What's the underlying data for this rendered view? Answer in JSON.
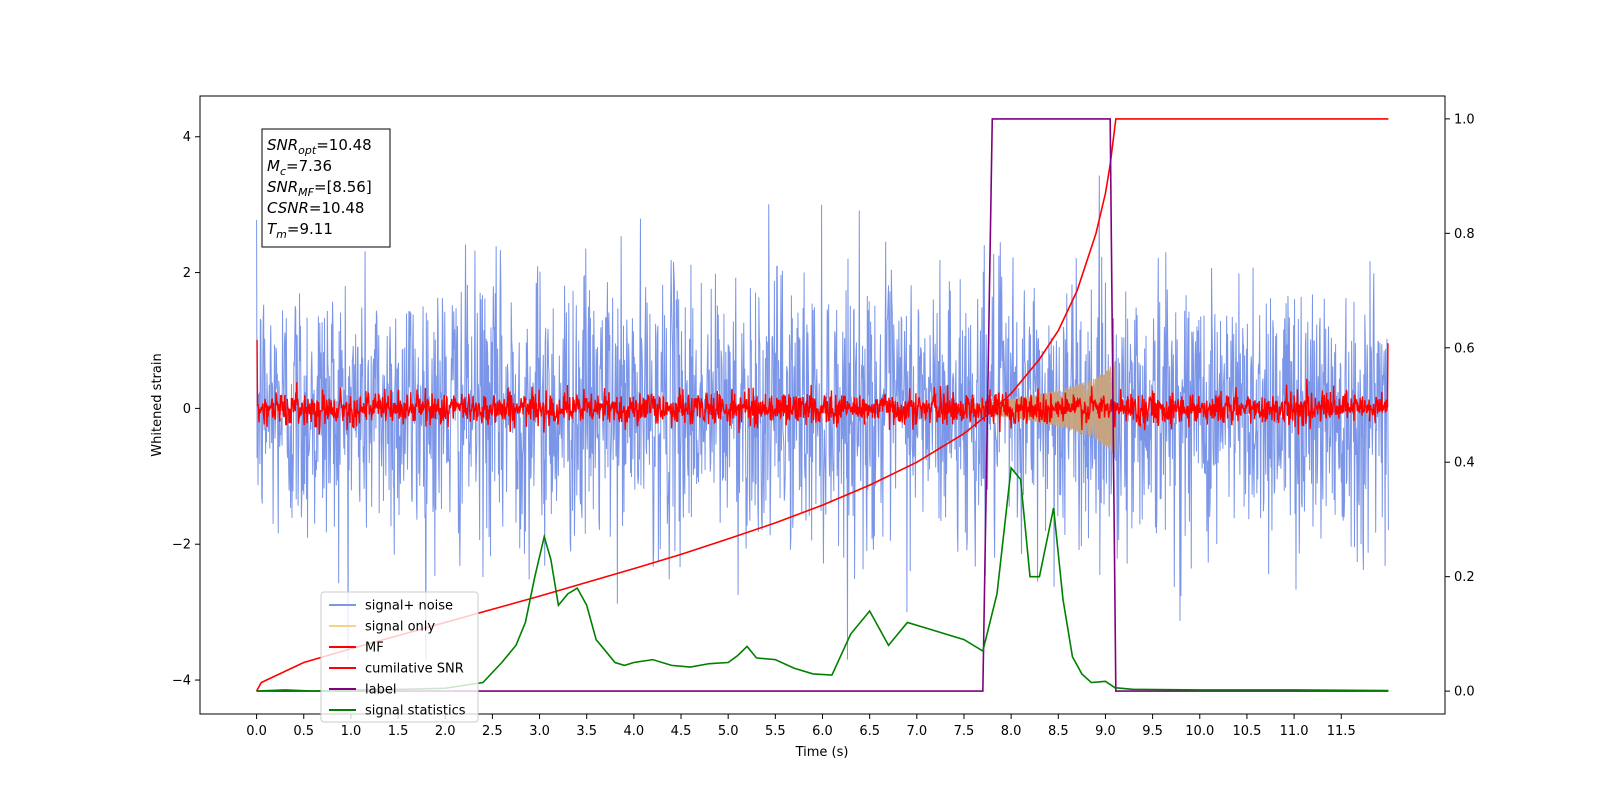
{
  "chart_data": {
    "type": "line",
    "title": "",
    "xlabel": "Time (s)",
    "ylabel": "Whitened strain",
    "xlim": [
      -0.6,
      12.6
    ],
    "ylim": [
      -4.5,
      4.6
    ],
    "y2lim": [
      -0.04,
      1.04
    ],
    "x_ticks": [
      0.0,
      0.5,
      1.0,
      1.5,
      2.0,
      2.5,
      3.0,
      3.5,
      4.0,
      4.5,
      5.0,
      5.5,
      6.0,
      6.5,
      7.0,
      7.5,
      8.0,
      8.5,
      9.0,
      9.5,
      10.0,
      10.5,
      11.0,
      11.5
    ],
    "x_tick_labels": [
      "0.0",
      "0.5",
      "1.0",
      "1.5",
      "2.0",
      "2.5",
      "3.0",
      "3.5",
      "4.0",
      "4.5",
      "5.0",
      "5.5",
      "6.0",
      "6.5",
      "7.0",
      "7.5",
      "8.0",
      "8.5",
      "9.0",
      "9.5",
      "10.0",
      "10.5",
      "11.0",
      "11.5"
    ],
    "y_ticks": [
      4,
      2,
      0,
      -2,
      -4
    ],
    "y_tick_labels": [
      "4",
      "2",
      "0",
      "−2",
      "−4"
    ],
    "y2_ticks": [
      1.0,
      0.8,
      0.6,
      0.4,
      0.2,
      0.0
    ],
    "y2_tick_labels": [
      "1.0",
      "0.8",
      "0.6",
      "0.4",
      "0.2",
      "0.0"
    ],
    "grid": false,
    "legend_position": "lower-left",
    "legend": [
      {
        "label": "signal+ noise",
        "color": "#7b96e8"
      },
      {
        "label": "signal only",
        "color": "#f9d088"
      },
      {
        "label": "MF",
        "color": "#ff0000"
      },
      {
        "label": "cumilative SNR",
        "color": "#ff0000"
      },
      {
        "label": "label",
        "color": "#800080"
      },
      {
        "label": "signal statistics",
        "color": "#008000"
      }
    ],
    "info_box": [
      {
        "sym": "SNR",
        "sub": "opt",
        "val": "=10.48"
      },
      {
        "sym": "M",
        "sub": "c",
        "val": "=7.36"
      },
      {
        "sym": "SNR",
        "sub": "MF",
        "val": "=[8.56]"
      },
      {
        "sym": "CSNR",
        "sub": "",
        "val": "=10.48"
      },
      {
        "sym": "T",
        "sub": "m",
        "val": "=9.11"
      }
    ],
    "series": [
      {
        "name": "signal+ noise",
        "axis": "left",
        "color": "#7b96e8",
        "style": "noise",
        "x_range": [
          0.0,
          12.0
        ],
        "amplitude_sd": 1.0,
        "peak_range": [
          -3.7,
          4.2
        ]
      },
      {
        "name": "signal only",
        "axis": "left",
        "color": "#c8a27c",
        "style": "chirp",
        "x_range": [
          7.4,
          9.11
        ],
        "envelope": [
          [
            7.4,
            0.02
          ],
          [
            7.8,
            0.1
          ],
          [
            8.2,
            0.18
          ],
          [
            8.6,
            0.3
          ],
          [
            8.9,
            0.45
          ],
          [
            9.05,
            0.62
          ],
          [
            9.11,
            0.7
          ]
        ]
      },
      {
        "name": "MF",
        "axis": "left",
        "color": "#ff0000",
        "style": "noise",
        "x_range": [
          0.0,
          12.0
        ],
        "amplitude_sd": 0.12,
        "edge_spikes": [
          [
            0.0,
            1.0
          ],
          [
            12.0,
            0.95
          ]
        ]
      },
      {
        "name": "cumilative SNR",
        "axis": "right",
        "color": "#ff0000",
        "style": "line",
        "x": [
          0.0,
          0.05,
          0.5,
          1.0,
          1.5,
          2.0,
          2.5,
          3.0,
          3.5,
          4.0,
          4.5,
          5.0,
          5.5,
          6.0,
          6.5,
          7.0,
          7.5,
          7.8,
          8.0,
          8.3,
          8.5,
          8.7,
          8.9,
          9.0,
          9.05,
          9.11,
          12.0
        ],
        "y": [
          0.0,
          0.015,
          0.05,
          0.074,
          0.097,
          0.12,
          0.143,
          0.166,
          0.19,
          0.214,
          0.239,
          0.266,
          0.294,
          0.325,
          0.36,
          0.4,
          0.45,
          0.49,
          0.52,
          0.58,
          0.63,
          0.7,
          0.8,
          0.87,
          0.92,
          1.0,
          1.0
        ]
      },
      {
        "name": "label",
        "axis": "right",
        "color": "#800080",
        "style": "line",
        "x": [
          0.0,
          7.7,
          7.8,
          9.05,
          9.11,
          12.0
        ],
        "y": [
          0.0,
          0.0,
          1.0,
          1.0,
          0.0,
          0.0
        ]
      },
      {
        "name": "signal statistics",
        "axis": "right",
        "color": "#008000",
        "style": "line",
        "x": [
          0.0,
          0.3,
          0.6,
          1.0,
          1.5,
          2.0,
          2.4,
          2.6,
          2.75,
          2.85,
          2.95,
          3.05,
          3.12,
          3.2,
          3.3,
          3.4,
          3.5,
          3.6,
          3.7,
          3.8,
          3.9,
          4.0,
          4.2,
          4.4,
          4.6,
          4.8,
          5.0,
          5.1,
          5.2,
          5.3,
          5.5,
          5.7,
          5.9,
          6.1,
          6.3,
          6.5,
          6.7,
          6.9,
          7.1,
          7.3,
          7.5,
          7.7,
          7.85,
          8.0,
          8.1,
          8.2,
          8.3,
          8.45,
          8.55,
          8.65,
          8.75,
          8.85,
          9.0,
          9.1,
          9.3,
          10.0,
          11.0,
          12.0
        ],
        "y": [
          0.0,
          0.002,
          0.0,
          0.002,
          0.003,
          0.005,
          0.015,
          0.05,
          0.08,
          0.12,
          0.2,
          0.27,
          0.23,
          0.15,
          0.17,
          0.18,
          0.15,
          0.09,
          0.07,
          0.05,
          0.045,
          0.05,
          0.055,
          0.045,
          0.042,
          0.048,
          0.05,
          0.062,
          0.078,
          0.058,
          0.055,
          0.04,
          0.03,
          0.028,
          0.1,
          0.14,
          0.08,
          0.12,
          0.11,
          0.1,
          0.09,
          0.07,
          0.17,
          0.39,
          0.37,
          0.2,
          0.2,
          0.32,
          0.16,
          0.06,
          0.03,
          0.015,
          0.017,
          0.006,
          0.003,
          0.002,
          0.002,
          0.001
        ]
      }
    ]
  }
}
